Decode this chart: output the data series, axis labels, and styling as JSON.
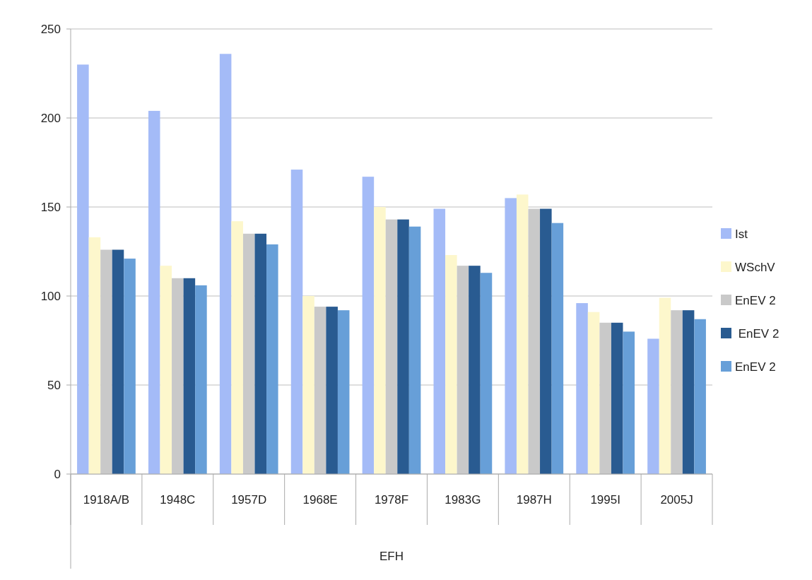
{
  "chart_data": {
    "type": "bar",
    "xlabel": "EFH",
    "categories": [
      "1918A/B",
      "1948C",
      "1957D",
      "1968E",
      "1978F",
      "1983G",
      "1987H",
      "1995I",
      "2005J"
    ],
    "series": [
      {
        "name": "Ist",
        "color": "#a4bbf7",
        "values": [
          230,
          204,
          236,
          171,
          167,
          149,
          155,
          96,
          76
        ]
      },
      {
        "name": "WSchV",
        "color": "#fdf7cc",
        "values": [
          133,
          117,
          142,
          100,
          150,
          123,
          157,
          91,
          99
        ]
      },
      {
        "name": "EnEV 2",
        "color": "#c9c9c9",
        "values": [
          126,
          110,
          135,
          94,
          143,
          117,
          149,
          85,
          92
        ]
      },
      {
        "name": " EnEV 2",
        "color": "#295b91",
        "values": [
          126,
          110,
          135,
          94,
          143,
          117,
          149,
          85,
          92
        ]
      },
      {
        "name": "EnEV 2",
        "color": "#679fd8",
        "values": [
          121,
          106,
          129,
          92,
          139,
          113,
          141,
          80,
          87
        ]
      }
    ],
    "ylim": [
      0,
      250
    ],
    "yticks": [
      0,
      50,
      100,
      150,
      200,
      250
    ],
    "grid": "y",
    "legend": "right"
  }
}
